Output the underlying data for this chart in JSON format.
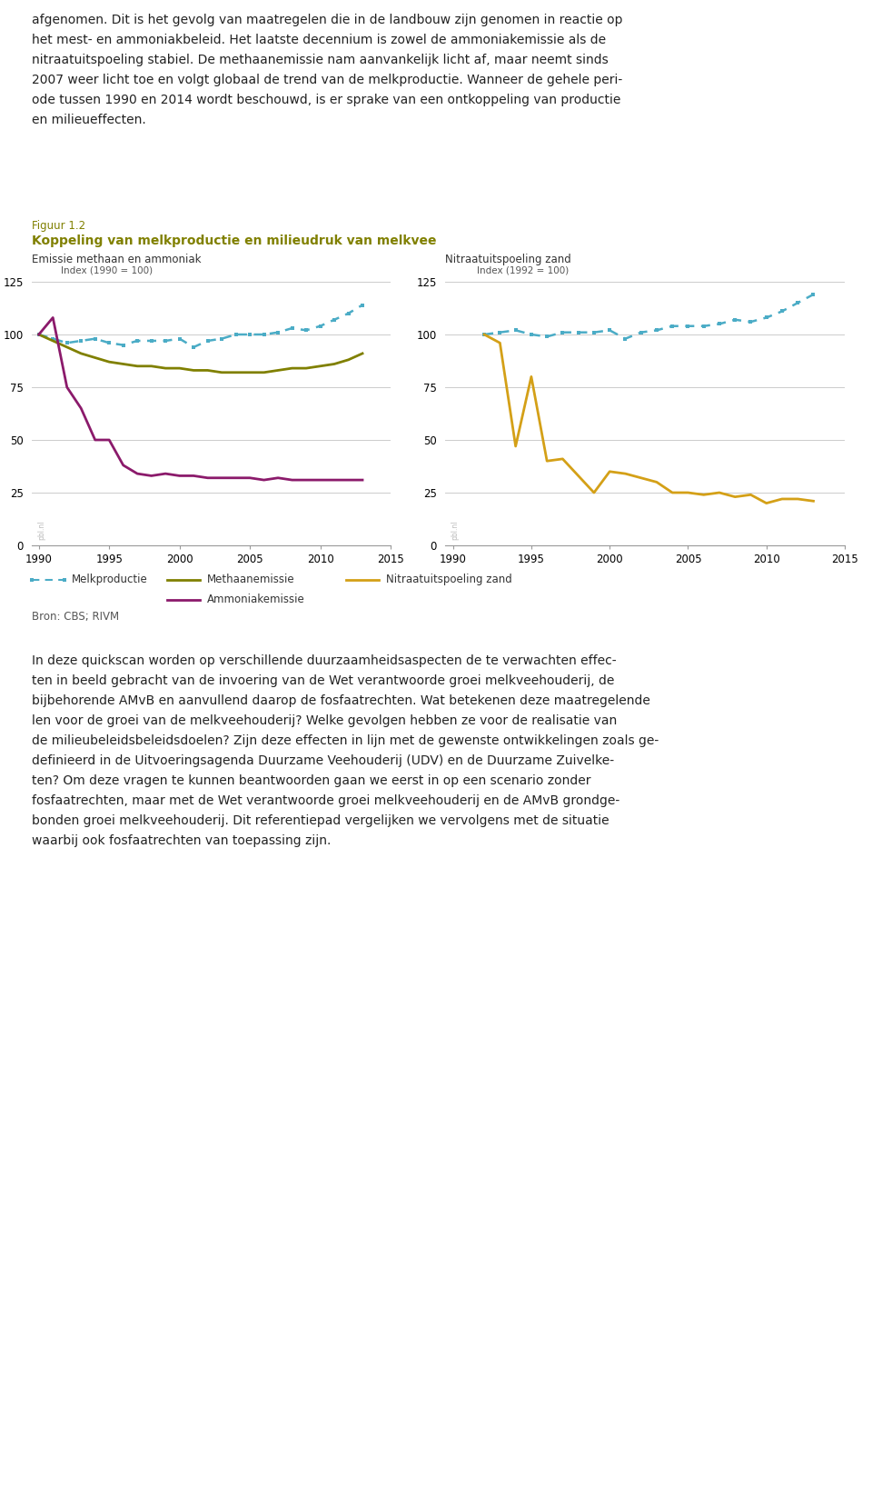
{
  "fig_number": "Figuur 1.2",
  "fig_title": "Koppeling van melkproductie en milieudruk van melkvee",
  "left_panel_title": "Emissie methaan en ammoniak",
  "right_panel_title": "Nitraatuitspoeling zand",
  "left_index_label": "Index (1990 = 100)",
  "right_index_label": "Index (1992 = 100)",
  "source": "Bron: CBS; RIVM",
  "ylim": [
    0,
    125
  ],
  "yticks": [
    0,
    25,
    50,
    75,
    100,
    125
  ],
  "xlim": [
    1989.5,
    2015
  ],
  "xticks": [
    1990,
    1995,
    2000,
    2005,
    2010,
    2015
  ],
  "melkproductie_left": {
    "years": [
      1990,
      1991,
      1992,
      1993,
      1994,
      1995,
      1996,
      1997,
      1998,
      1999,
      2000,
      2001,
      2002,
      2003,
      2004,
      2005,
      2006,
      2007,
      2008,
      2009,
      2010,
      2011,
      2012,
      2013
    ],
    "values": [
      100,
      98,
      96,
      97,
      98,
      96,
      95,
      97,
      97,
      97,
      98,
      94,
      97,
      98,
      100,
      100,
      100,
      101,
      103,
      102,
      104,
      107,
      110,
      114
    ],
    "color": "#4BACC6",
    "linewidth": 1.8
  },
  "methaanemissie": {
    "years": [
      1990,
      1991,
      1992,
      1993,
      1994,
      1995,
      1996,
      1997,
      1998,
      1999,
      2000,
      2001,
      2002,
      2003,
      2004,
      2005,
      2006,
      2007,
      2008,
      2009,
      2010,
      2011,
      2012,
      2013
    ],
    "values": [
      100,
      97,
      94,
      91,
      89,
      87,
      86,
      85,
      85,
      84,
      84,
      83,
      83,
      82,
      82,
      82,
      82,
      83,
      84,
      84,
      85,
      86,
      88,
      91
    ],
    "color": "#808000",
    "linewidth": 2.0
  },
  "ammoniakemissie": {
    "years": [
      1990,
      1991,
      1992,
      1993,
      1994,
      1995,
      1996,
      1997,
      1998,
      1999,
      2000,
      2001,
      2002,
      2003,
      2004,
      2005,
      2006,
      2007,
      2008,
      2009,
      2010,
      2011,
      2012,
      2013
    ],
    "values": [
      100,
      108,
      75,
      65,
      50,
      50,
      38,
      34,
      33,
      34,
      33,
      33,
      32,
      32,
      32,
      32,
      31,
      32,
      31,
      31,
      31,
      31,
      31,
      31
    ],
    "color": "#8B1A6B",
    "linewidth": 2.0
  },
  "melkproductie_right": {
    "years": [
      1992,
      1993,
      1994,
      1995,
      1996,
      1997,
      1998,
      1999,
      2000,
      2001,
      2002,
      2003,
      2004,
      2005,
      2006,
      2007,
      2008,
      2009,
      2010,
      2011,
      2012,
      2013
    ],
    "values": [
      100,
      101,
      102,
      100,
      99,
      101,
      101,
      101,
      102,
      98,
      101,
      102,
      104,
      104,
      104,
      105,
      107,
      106,
      108,
      111,
      115,
      119
    ],
    "color": "#4BACC6",
    "linewidth": 1.8
  },
  "nitraatuitspoeling": {
    "years": [
      1992,
      1993,
      1994,
      1995,
      1996,
      1997,
      1998,
      1999,
      2000,
      2001,
      2002,
      2003,
      2004,
      2005,
      2006,
      2007,
      2008,
      2009,
      2010,
      2011,
      2012,
      2013
    ],
    "values": [
      100,
      96,
      47,
      80,
      40,
      41,
      33,
      25,
      35,
      34,
      32,
      30,
      25,
      25,
      24,
      25,
      23,
      24,
      20,
      22,
      22,
      21
    ],
    "color": "#D4A017",
    "linewidth": 2.0
  },
  "background_color": "#FFFFFF",
  "grid_color": "#CCCCCC",
  "fig_number_color": "#808000",
  "fig_title_color": "#808000",
  "panel_title_color": "#333333",
  "tick_label_size": 8.5,
  "label_size": 8.5,
  "legend_size": 8.5,
  "fig_title_size": 10,
  "fig_number_size": 8.5,
  "source_size": 8.5,
  "text_above": [
    "afgenomen. Dit is het gevolg van maatregelen die in de landbouw zijn genomen in reactie op",
    "het mest- en ammoniakbeleid. Het laatste decennium is zowel de ammoniakemissie als de",
    "nitraatuitspoeling stabiel. De methaanemissie nam aanvankelijk licht af, maar neemt sinds",
    "2007 weer licht toe en volgt globaal de trend van de melkproductie. Wanneer de gehele peri-",
    "ode tussen 1990 en 2014 wordt beschouwd, is er sprake van een ontkoppeling van productie",
    "en milieueffecten."
  ],
  "text_below": [
    "In deze quickscan worden op verschillende duurzaamheidsaspecten de te verwachten effec-",
    "ten in beeld gebracht van de invoering van de Wet verantwoorde groei melkveehouderij, de",
    "bijbehorende AMvB en aanvullend daarop de fosfaatrechten. Wat betekenen deze maatregelende",
    "len voor de groei van de melkveehouderij? Welke gevolgen hebben ze voor de realisatie van",
    "de milieubeleidsbeleidsdoelen? Zijn deze effecten in lijn met de gewenste ontwikkelingen zoals ge-",
    "definieerd in de Uitvoeringsagenda Duurzame Veehouderij (UDV) en de Duurzame Zuivelke-",
    "ten? Om deze vragen te kunnen beantwoorden gaan we eerst in op een scenario zonder",
    "fosfaatrechten, maar met de Wet verantwoorde groei melkveehouderij en de AMvB grondge-",
    "bonden groei melkveehouderij. Dit referentiepad vergelijken we vervolgens met de situatie",
    "waarbij ook fosfaatrechten van toepassing zijn."
  ]
}
